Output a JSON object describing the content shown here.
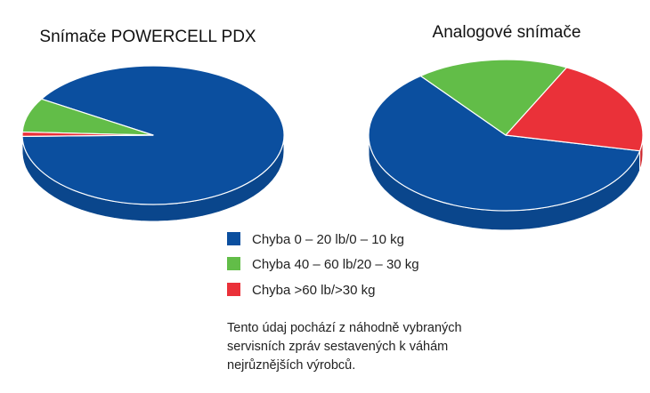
{
  "chart_data": {
    "type": "pie",
    "categories": [
      "Chyba 0 – 20 lb/0 – 10 kg",
      "Chyba 40 – 60 lb/20 – 30 kg",
      "Chyba >60 lb/>30 kg"
    ],
    "colors": [
      "#0b4f9f",
      "#62bd48",
      "#ea3139"
    ],
    "charts": [
      {
        "title": "Snímače POWERCELL PDX",
        "values": [
          91,
          8,
          1
        ]
      },
      {
        "title": "Analogové snímače",
        "values": [
          61,
          18,
          21
        ]
      }
    ],
    "legend": {
      "placement": "bottom-center",
      "entries": [
        "Chyba 0 – 20 lb/0 – 10 kg",
        "Chyba 40 – 60 lb/20 – 30 kg",
        "Chyba >60 lb/>30 kg"
      ]
    },
    "note": [
      "Tento údaj pochází z náhodně vybraných",
      "servisních zpráv sestavených k váhám",
      "nejrůznějších výrobců."
    ]
  }
}
